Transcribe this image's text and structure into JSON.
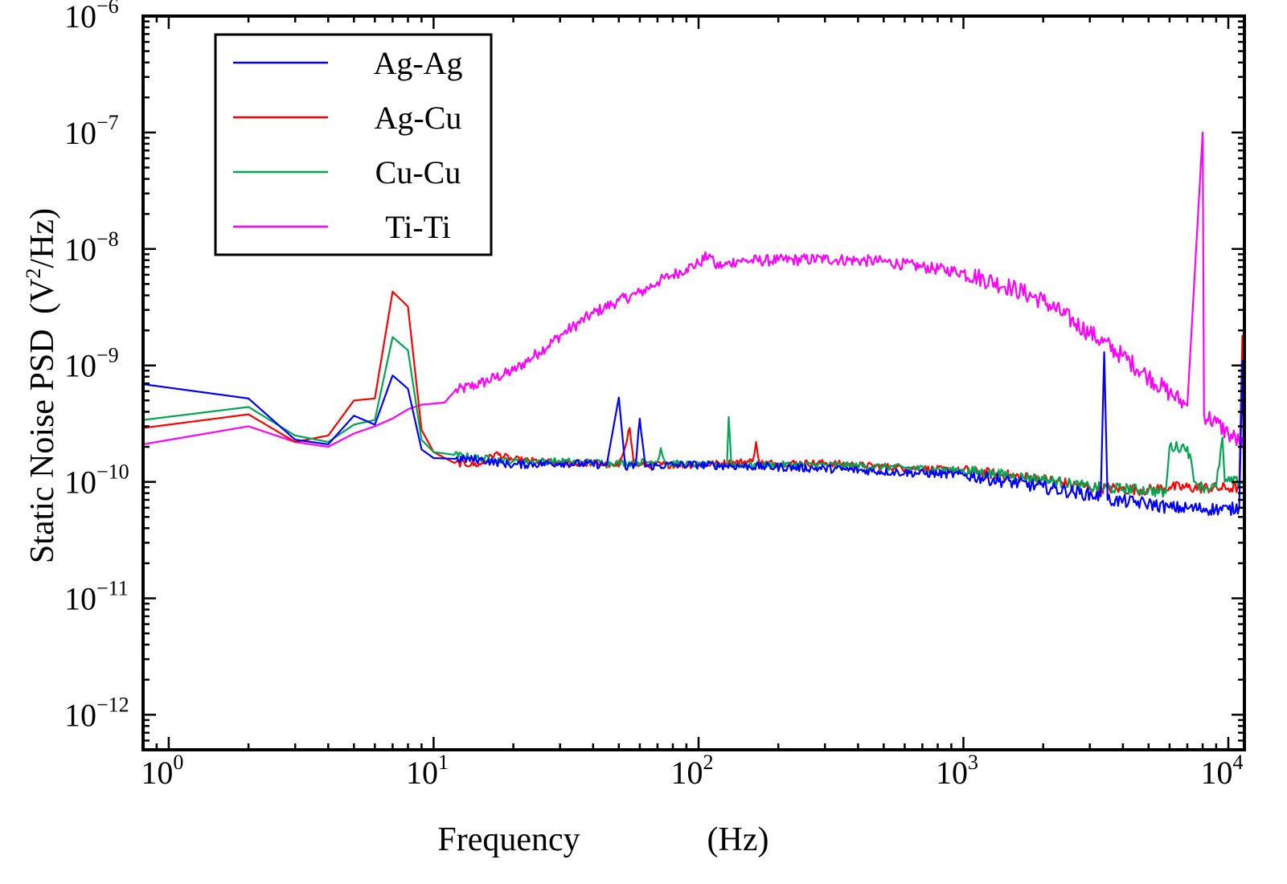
{
  "chart_data": {
    "type": "line",
    "xscale": "log",
    "yscale": "log",
    "xlim": [
      0.8,
      11500
    ],
    "ylim": [
      5e-13,
      1e-06
    ],
    "xlabel": "Frequency",
    "xlabel_unit": "(Hz)",
    "ylabel": "Static Noise PSD",
    "ylabel_unit_prefix": "(V",
    "ylabel_unit_sup": "2",
    "ylabel_unit_suffix": "/Hz)",
    "grid": false,
    "legend_position": "top-left",
    "x_ticks": [
      {
        "base": "10",
        "exp": "0",
        "value": 1
      },
      {
        "base": "10",
        "exp": "1",
        "value": 10
      },
      {
        "base": "10",
        "exp": "2",
        "value": 100
      },
      {
        "base": "10",
        "exp": "3",
        "value": 1000
      },
      {
        "base": "10",
        "exp": "4",
        "value": 10000
      }
    ],
    "y_ticks": [
      {
        "base": "10",
        "exp": "−6",
        "value": 1e-06
      },
      {
        "base": "10",
        "exp": "−7",
        "value": 1e-07
      },
      {
        "base": "10",
        "exp": "−8",
        "value": 1e-08
      },
      {
        "base": "10",
        "exp": "−9",
        "value": 1e-09
      },
      {
        "base": "10",
        "exp": "−10",
        "value": 1e-10
      },
      {
        "base": "10",
        "exp": "−11",
        "value": 1e-11
      },
      {
        "base": "10",
        "exp": "−12",
        "value": 1e-12
      }
    ],
    "series": [
      {
        "name": "Ti-Ti",
        "color": "#ff00ff",
        "noise_band": 0.05,
        "points": [
          [
            0.8,
            2.1e-10
          ],
          [
            2,
            3e-10
          ],
          [
            3,
            2.2e-10
          ],
          [
            4,
            2e-10
          ],
          [
            5,
            2.6e-10
          ],
          [
            6,
            3e-10
          ],
          [
            7,
            3.5e-10
          ],
          [
            8,
            4.2e-10
          ],
          [
            9,
            4.6e-10
          ],
          [
            10,
            4.7e-10
          ],
          [
            11,
            4.8e-10
          ],
          [
            12,
            6e-10
          ],
          [
            15,
            7e-10
          ],
          [
            20,
            9e-10
          ],
          [
            25,
            1.3e-09
          ],
          [
            30,
            1.8e-09
          ],
          [
            40,
            2.8e-09
          ],
          [
            50,
            3.6e-09
          ],
          [
            60,
            4.2e-09
          ],
          [
            70,
            5.2e-09
          ],
          [
            80,
            6e-09
          ],
          [
            90,
            6.8e-09
          ],
          [
            100,
            7.5e-09
          ],
          [
            110,
            9e-09
          ],
          [
            115,
            7.2e-09
          ],
          [
            125,
            7.2e-09
          ],
          [
            140,
            8e-09
          ],
          [
            150,
            7.9e-09
          ],
          [
            200,
            8e-09
          ],
          [
            300,
            8.2e-09
          ],
          [
            500,
            7.8e-09
          ],
          [
            700,
            7e-09
          ],
          [
            1000,
            6.3e-09
          ],
          [
            1500,
            4.7e-09
          ],
          [
            2000,
            3.6e-09
          ],
          [
            3000,
            1.9e-09
          ],
          [
            4000,
            1.2e-09
          ],
          [
            5000,
            8e-10
          ],
          [
            6000,
            5.8e-10
          ],
          [
            7000,
            4.5e-10
          ],
          [
            8000,
            1e-07
          ],
          [
            8100,
            3.8e-10
          ],
          [
            9000,
            3.2e-10
          ],
          [
            10000,
            2.6e-10
          ],
          [
            11000,
            2.2e-10
          ],
          [
            11500,
            2e-10
          ]
        ]
      },
      {
        "name": "Ag-Cu",
        "color": "#ff0000",
        "noise_band": 0.03,
        "points": [
          [
            0.8,
            2.9e-10
          ],
          [
            2,
            3.8e-10
          ],
          [
            3,
            2.2e-10
          ],
          [
            4,
            2.5e-10
          ],
          [
            5,
            5e-10
          ],
          [
            6,
            5.2e-10
          ],
          [
            7,
            4.3e-09
          ],
          [
            8,
            3.2e-09
          ],
          [
            9,
            2.8e-10
          ],
          [
            10,
            1.8e-10
          ],
          [
            12,
            1.45e-10
          ],
          [
            15,
            1.4e-10
          ],
          [
            17,
            1.75e-10
          ],
          [
            20,
            1.55e-10
          ],
          [
            25,
            1.5e-10
          ],
          [
            30,
            1.45e-10
          ],
          [
            40,
            1.45e-10
          ],
          [
            50,
            1.35e-10
          ],
          [
            55,
            2.9e-10
          ],
          [
            57,
            1.4e-10
          ],
          [
            60,
            1.4e-10
          ],
          [
            100,
            1.4e-10
          ],
          [
            160,
            1.5e-10
          ],
          [
            165,
            2.2e-10
          ],
          [
            170,
            1.45e-10
          ],
          [
            300,
            1.45e-10
          ],
          [
            500,
            1.35e-10
          ],
          [
            1000,
            1.25e-10
          ],
          [
            2000,
            1.05e-10
          ],
          [
            3000,
            9e-11
          ],
          [
            5000,
            8.5e-11
          ],
          [
            6000,
            9e-11
          ],
          [
            10000,
            8.8e-11
          ],
          [
            11000,
            9e-11
          ],
          [
            11300,
            1.8e-09
          ],
          [
            11500,
            1e-10
          ]
        ]
      },
      {
        "name": "Cu-Cu",
        "color": "#00a651",
        "noise_band": 0.03,
        "points": [
          [
            0.8,
            3.4e-10
          ],
          [
            2,
            4.4e-10
          ],
          [
            3,
            2.5e-10
          ],
          [
            4,
            2.2e-10
          ],
          [
            5,
            3.1e-10
          ],
          [
            6,
            3.4e-10
          ],
          [
            7,
            1.75e-09
          ],
          [
            8,
            1.35e-09
          ],
          [
            9,
            2.3e-10
          ],
          [
            10,
            1.8e-10
          ],
          [
            15,
            1.6e-10
          ],
          [
            20,
            1.5e-10
          ],
          [
            30,
            1.5e-10
          ],
          [
            50,
            1.45e-10
          ],
          [
            70,
            1.5e-10
          ],
          [
            72,
            1.95e-10
          ],
          [
            75,
            1.45e-10
          ],
          [
            100,
            1.4e-10
          ],
          [
            128,
            1.4e-10
          ],
          [
            130,
            3.6e-10
          ],
          [
            133,
            1.4e-10
          ],
          [
            300,
            1.4e-10
          ],
          [
            500,
            1.35e-10
          ],
          [
            1000,
            1.25e-10
          ],
          [
            2000,
            1.05e-10
          ],
          [
            3000,
            9e-11
          ],
          [
            5000,
            8.5e-11
          ],
          [
            5800,
            8e-11
          ],
          [
            6000,
            2e-10
          ],
          [
            7000,
            2e-10
          ],
          [
            7500,
            1e-10
          ],
          [
            8000,
            9e-11
          ],
          [
            9000,
            9e-11
          ],
          [
            9500,
            2.4e-10
          ],
          [
            9700,
            1e-10
          ],
          [
            11500,
            1e-10
          ]
        ]
      },
      {
        "name": "Ag-Ag",
        "color": "#0000ff",
        "noise_band": 0.035,
        "points": [
          [
            0.8,
            6.9e-10
          ],
          [
            2,
            5.2e-10
          ],
          [
            3,
            2.3e-10
          ],
          [
            4,
            2.1e-10
          ],
          [
            5,
            3.7e-10
          ],
          [
            6,
            3.1e-10
          ],
          [
            7,
            8.2e-10
          ],
          [
            8,
            6.3e-10
          ],
          [
            9,
            1.9e-10
          ],
          [
            10,
            1.6e-10
          ],
          [
            15,
            1.55e-10
          ],
          [
            20,
            1.4e-10
          ],
          [
            30,
            1.45e-10
          ],
          [
            45,
            1.4e-10
          ],
          [
            50,
            5.3e-10
          ],
          [
            53,
            1.3e-10
          ],
          [
            58,
            1.4e-10
          ],
          [
            60,
            3.5e-10
          ],
          [
            63,
            1.35e-10
          ],
          [
            80,
            1.4e-10
          ],
          [
            100,
            1.4e-10
          ],
          [
            300,
            1.3e-10
          ],
          [
            600,
            1.2e-10
          ],
          [
            1000,
            1.15e-10
          ],
          [
            2000,
            9e-11
          ],
          [
            3300,
            7.5e-11
          ],
          [
            3400,
            1.3e-09
          ],
          [
            3500,
            7e-11
          ],
          [
            5000,
            6.5e-11
          ],
          [
            6000,
            6e-11
          ],
          [
            10000,
            5.8e-11
          ],
          [
            11000,
            6e-11
          ],
          [
            11300,
            1.1e-09
          ],
          [
            11500,
            5.5e-11
          ]
        ]
      }
    ],
    "legend_order": [
      "Ag-Ag",
      "Ag-Cu",
      "Cu-Cu",
      "Ti-Ti"
    ]
  }
}
